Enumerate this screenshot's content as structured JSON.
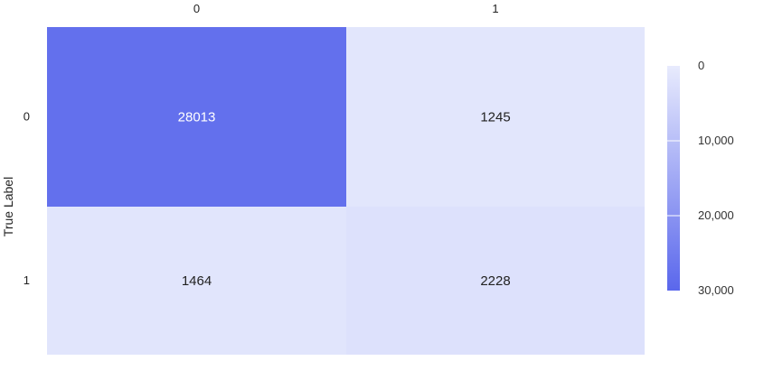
{
  "chart_data": {
    "type": "heatmap",
    "x_categories": [
      "0",
      "1"
    ],
    "y_categories": [
      "0",
      "1"
    ],
    "values": [
      [
        28013,
        1245
      ],
      [
        1464,
        2228
      ]
    ],
    "ylabel": "True Label",
    "xlabel": "",
    "title": "",
    "colorscale": {
      "min": 0,
      "max": 30000,
      "min_color": "#e8ebfd",
      "max_color": "#5a67ec",
      "ticks": [
        0,
        10000,
        20000,
        30000
      ],
      "tick_labels": [
        "0",
        "10,000",
        "20,000",
        "30,000"
      ],
      "reversed": true
    },
    "x_axis_position": "top",
    "grid": false,
    "legend": "colorbar-right"
  }
}
